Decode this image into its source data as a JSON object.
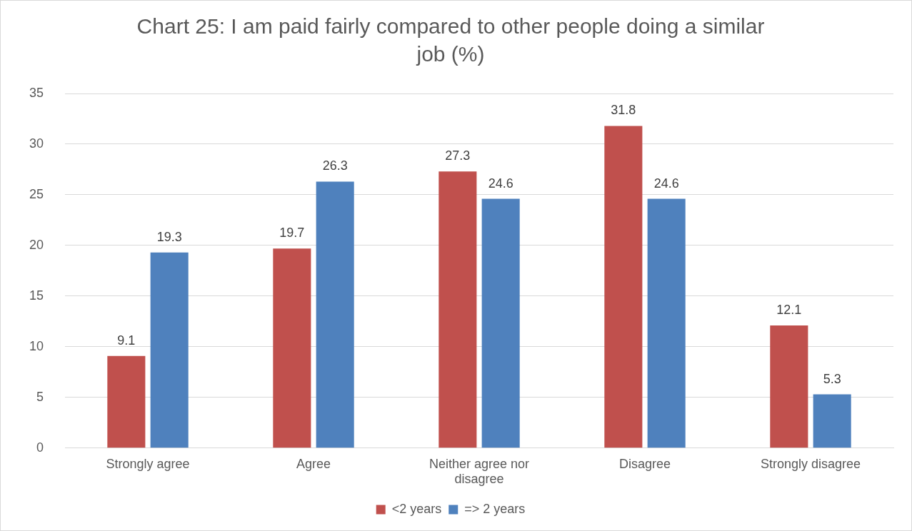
{
  "chart_data": {
    "type": "bar",
    "title": "Chart 25: I am paid fairly compared to other people doing a similar job (%)",
    "categories": [
      "Strongly agree",
      "Agree",
      "Neither agree nor disagree",
      "Disagree",
      "Strongly disagree"
    ],
    "series": [
      {
        "name": "<2 years",
        "color": "#c0504d",
        "values": [
          9.1,
          19.7,
          27.3,
          31.8,
          12.1
        ]
      },
      {
        "name": "=> 2 years",
        "color": "#4f81bd",
        "values": [
          19.3,
          26.3,
          24.6,
          24.6,
          5.3
        ]
      }
    ],
    "ylim": [
      0,
      35
    ],
    "yticks": [
      0,
      5,
      10,
      15,
      20,
      25,
      30,
      35
    ],
    "grid": "y",
    "legend": "bottom",
    "data_labels": true
  }
}
